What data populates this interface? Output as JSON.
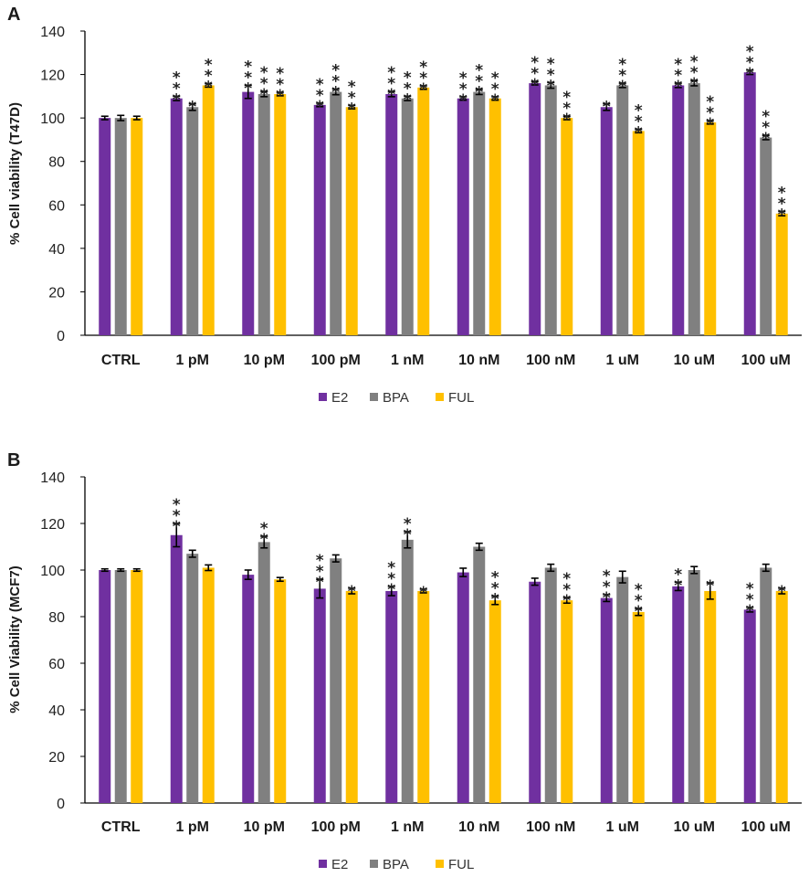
{
  "colors": {
    "E2": "#7030a0",
    "BPA": "#808080",
    "FUL": "#ffc000",
    "axis": "#000000",
    "error": "#000000"
  },
  "chart_data": [
    {
      "panel": "A",
      "type": "bar",
      "ylabel": "% Cell viability (T47D)",
      "xlabel": "",
      "ylim": [
        0,
        140
      ],
      "yticks": [
        0,
        20,
        40,
        60,
        80,
        100,
        120,
        140
      ],
      "categories": [
        "CTRL",
        "1 pM",
        "10 pM",
        "100 pM",
        "1 nM",
        "10 nM",
        "100 nM",
        "1 uM",
        "10 uM",
        "100 uM"
      ],
      "legend": [
        "E2",
        "BPA",
        "FUL"
      ],
      "legend_position": "bottom",
      "series": [
        {
          "name": "E2",
          "values": [
            100,
            109,
            112,
            106,
            111,
            109,
            116,
            105,
            115,
            121
          ],
          "errors": [
            0.8,
            1,
            3,
            0.8,
            1.2,
            0.8,
            0.8,
            1.5,
            1,
            1
          ],
          "significance": [
            "",
            "***",
            "***",
            "***",
            "***",
            "***",
            "***",
            "*",
            "***",
            "***"
          ]
        },
        {
          "name": "BPA",
          "values": [
            100,
            105,
            111,
            112,
            109,
            112,
            115,
            115,
            116,
            91
          ],
          "errors": [
            1.2,
            1.5,
            1.2,
            1.3,
            1,
            1.2,
            1.3,
            1,
            1.2,
            1
          ],
          "significance": [
            "",
            "*",
            "***",
            "***",
            "***",
            "***",
            "***",
            "***",
            "***",
            "***"
          ]
        },
        {
          "name": "FUL",
          "values": [
            100,
            115,
            111,
            105,
            114,
            109,
            100,
            94,
            98,
            56
          ],
          "errors": [
            0.8,
            0.8,
            0.8,
            0.8,
            0.8,
            0.8,
            0.8,
            0.8,
            0.8,
            1
          ],
          "significance": [
            "",
            "***",
            "***",
            "***",
            "***",
            "***",
            "***",
            "***",
            "***",
            "***"
          ]
        }
      ]
    },
    {
      "panel": "B",
      "type": "bar",
      "ylabel": "% Cell Viability (MCF7)",
      "xlabel": "",
      "ylim": [
        0,
        140
      ],
      "yticks": [
        0,
        20,
        40,
        60,
        80,
        100,
        120,
        140
      ],
      "categories": [
        "CTRL",
        "1 pM",
        "10 pM",
        "100 pM",
        "1 nM",
        "10 nM",
        "100 nM",
        "1 uM",
        "10 uM",
        "100 uM"
      ],
      "legend": [
        "E2",
        "BPA",
        "FUL"
      ],
      "legend_position": "bottom",
      "series": [
        {
          "name": "E2",
          "values": [
            100,
            115,
            98,
            92,
            91,
            99,
            95,
            88,
            93,
            83
          ],
          "errors": [
            0.5,
            5,
            2,
            4,
            2,
            1.8,
            1.5,
            1.5,
            1.8,
            1
          ],
          "significance": [
            "",
            "***",
            "",
            "***",
            "***",
            "",
            "",
            "***",
            "**",
            "***"
          ]
        },
        {
          "name": "BPA",
          "values": [
            100,
            107,
            112,
            105,
            113,
            110,
            101,
            97,
            100,
            101
          ],
          "errors": [
            0.5,
            1.5,
            2.5,
            1.5,
            3.5,
            1.5,
            1.5,
            2.5,
            1.5,
            1.5
          ],
          "significance": [
            "",
            "",
            "**",
            "",
            "**",
            "",
            "",
            "",
            "",
            ""
          ]
        },
        {
          "name": "FUL",
          "values": [
            100,
            101,
            96,
            91,
            91,
            87,
            87,
            82,
            91,
            91
          ],
          "errors": [
            0.5,
            1.2,
            0.8,
            1.2,
            0.8,
            1.8,
            1.2,
            1.5,
            3.5,
            1.2
          ],
          "significance": [
            "",
            "",
            "",
            "*",
            "*",
            "***",
            "***",
            "***",
            "*",
            "*"
          ]
        }
      ]
    }
  ]
}
